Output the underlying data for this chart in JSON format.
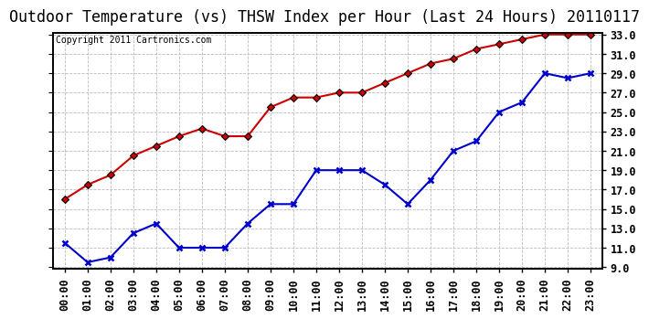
{
  "title": "Outdoor Temperature (vs) THSW Index per Hour (Last 24 Hours) 20110117",
  "copyright": "Copyright 2011 Cartronics.com",
  "hours": [
    "00:00",
    "01:00",
    "02:00",
    "03:00",
    "04:00",
    "05:00",
    "06:00",
    "07:00",
    "08:00",
    "09:00",
    "10:00",
    "11:00",
    "12:00",
    "13:00",
    "14:00",
    "15:00",
    "16:00",
    "17:00",
    "18:00",
    "19:00",
    "20:00",
    "21:00",
    "22:00",
    "23:00"
  ],
  "thsw": [
    16.0,
    17.5,
    18.5,
    20.5,
    21.5,
    22.5,
    23.3,
    22.5,
    22.5,
    25.5,
    26.5,
    26.5,
    27.0,
    27.0,
    28.0,
    29.0,
    30.0,
    30.5,
    31.5,
    32.0,
    32.5,
    33.0,
    33.0,
    33.0
  ],
  "temp": [
    11.5,
    9.5,
    10.0,
    12.5,
    13.5,
    11.0,
    11.0,
    11.0,
    13.5,
    15.5,
    15.5,
    19.0,
    19.0,
    19.0,
    17.5,
    15.5,
    18.0,
    21.0,
    22.0,
    25.0,
    26.0,
    29.0,
    28.5,
    29.0
  ],
  "thsw_color": "#cc0000",
  "temp_color": "#0000cc",
  "marker_color": "#000000",
  "bg_color": "#ffffff",
  "grid_color": "#bbbbbb",
  "ylim": [
    9.0,
    33.0
  ],
  "yticks": [
    9.0,
    11.0,
    13.0,
    15.0,
    17.0,
    19.0,
    21.0,
    23.0,
    25.0,
    27.0,
    29.0,
    31.0,
    33.0
  ],
  "title_fontsize": 12,
  "copyright_fontsize": 7,
  "tick_fontsize": 8.5
}
